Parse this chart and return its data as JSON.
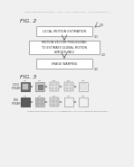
{
  "bg_color": "#f0f0f0",
  "header_text": "Patent Application Publication    Aug. 7, 2012 / Sheet 2 of 14    US 2012/0195506 A1",
  "fig2_label": "FIG. 2",
  "fig3_label": "FIG. 3",
  "box1_text": "LOCAL MOTION ESTIMATION",
  "box1_num": "210",
  "box2_text": "MOTION VECTOR PROCESSING\nTO ESTIMATE GLOBAL MOTION\n(SMOOTHING)",
  "box2_num": "220",
  "box3_text": "IMAGE WARPING",
  "box3_num": "230",
  "input_label": "200",
  "fig3_row1_label": "VIDEO\nSTREAM",
  "fig3_row2_label": "NEW\nSTREAM",
  "fig3_caption": "SUMMARIZATION OF FIG. 1 TO TEMPORAL IN-LOCAL MOTION ESTIMATION",
  "box_edge": "#888888",
  "box_fill": "#ffffff",
  "text_color": "#333333",
  "num_color": "#555555",
  "arrow_color": "#555555"
}
